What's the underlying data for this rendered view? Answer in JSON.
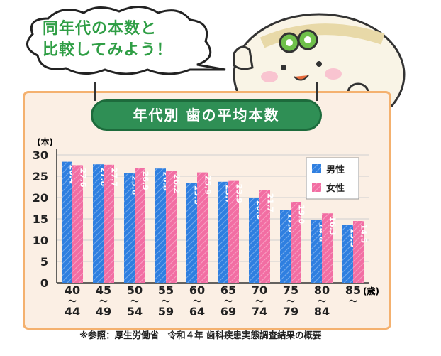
{
  "speech_bubble": {
    "line1": "同年代の本数と",
    "line2": "比較してみよう！"
  },
  "chart_data": {
    "type": "bar",
    "title": "年代別  歯の平均本数",
    "ylabel": "(本)",
    "xlabel": "(歳)",
    "ylim": [
      0,
      30
    ],
    "yticks": [
      0,
      5,
      10,
      15,
      20,
      25,
      30
    ],
    "categories": [
      {
        "top": "40",
        "tilde": "〜",
        "bottom": "44"
      },
      {
        "top": "45",
        "tilde": "〜",
        "bottom": "49"
      },
      {
        "top": "50",
        "tilde": "〜",
        "bottom": "54"
      },
      {
        "top": "55",
        "tilde": "〜",
        "bottom": "59"
      },
      {
        "top": "60",
        "tilde": "〜",
        "bottom": "64"
      },
      {
        "top": "65",
        "tilde": "〜",
        "bottom": "69"
      },
      {
        "top": "70",
        "tilde": "〜",
        "bottom": "74"
      },
      {
        "top": "75",
        "tilde": "〜",
        "bottom": "79"
      },
      {
        "top": "80",
        "tilde": "〜",
        "bottom": "84"
      },
      {
        "top": "85",
        "tilde": "〜",
        "bottom": ""
      }
    ],
    "series": [
      {
        "name": "男性",
        "color": "#2f7fe0",
        "values": [
          28.4,
          27.8,
          25.8,
          26.8,
          23.5,
          23.7,
          20.0,
          17.0,
          14.8,
          13.5
        ],
        "labels": [
          "28.4",
          "27.8",
          "25.8",
          "26.8",
          "23.5",
          "23.7",
          "20.0",
          "17.0",
          "14.8",
          "13.5"
        ]
      },
      {
        "name": "女性",
        "color": "#f26ea3",
        "values": [
          27.6,
          27.7,
          26.9,
          26.2,
          25.9,
          23.9,
          21.7,
          19.0,
          16.3,
          14.5
        ],
        "labels": [
          "27.6",
          "27.7",
          "26.9",
          "26.2",
          "25.9",
          "23.9",
          "21.7",
          "19.0",
          "16.3",
          "14.5"
        ]
      }
    ],
    "legend_position": "top-right",
    "grid": true
  },
  "source_note": "※参照：厚生労働省　令和４年 歯科疾患実態調査結果の概要"
}
